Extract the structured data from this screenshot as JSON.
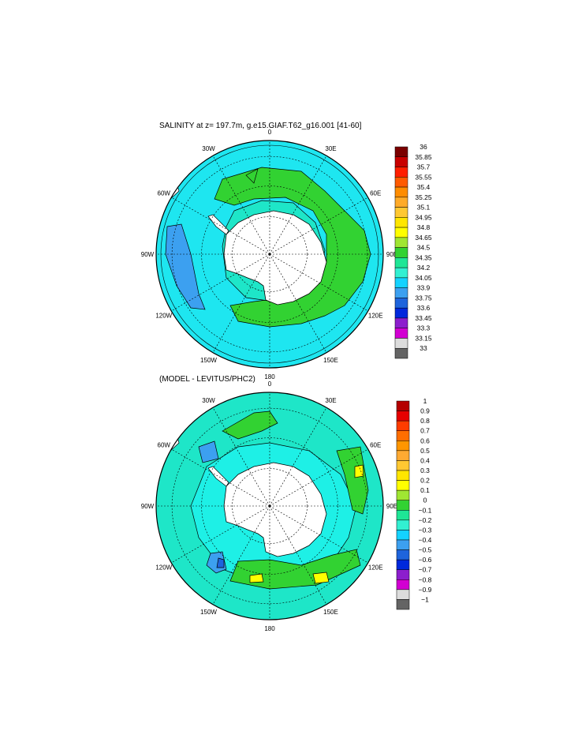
{
  "chart_data": [
    {
      "type": "heatmap",
      "title": "SALINITY at z= 197.7m, g.e15.GIAF.T62_g16.001 [41-60]",
      "projection": "south polar stereographic",
      "lon_labels": [
        "0",
        "30E",
        "60E",
        "90E",
        "120E",
        "150E",
        "180",
        "150W",
        "120W",
        "90W",
        "60W",
        "30W"
      ],
      "colorbar": {
        "labels": [
          "36",
          "35.85",
          "35.7",
          "35.55",
          "35.4",
          "35.25",
          "35.1",
          "34.95",
          "34.8",
          "34.65",
          "34.5",
          "34.35",
          "34.2",
          "34.05",
          "33.9",
          "33.75",
          "33.6",
          "33.45",
          "33.3",
          "33.15",
          "33"
        ],
        "colors": [
          "#7a0000",
          "#c80000",
          "#ff1e00",
          "#ff5a00",
          "#ff8c00",
          "#ffaa28",
          "#ffc832",
          "#ffe600",
          "#ffff00",
          "#a0e632",
          "#32d232",
          "#1ee696",
          "#32f0d2",
          "#14d2ff",
          "#3ca0f0",
          "#1e64dc",
          "#0028dc",
          "#8c1ecd",
          "#d200d2",
          "#dcdcdc",
          "#646464"
        ]
      }
    },
    {
      "type": "heatmap",
      "title": "(MODEL - LEVITUS/PHC2)",
      "projection": "south polar stereographic",
      "lon_labels": [
        "0",
        "30E",
        "60E",
        "90E",
        "120E",
        "150E",
        "180",
        "150W",
        "120W",
        "90W",
        "60W",
        "30W"
      ],
      "colorbar": {
        "labels": [
          "1",
          "0.9",
          "0.8",
          "0.7",
          "0.6",
          "0.5",
          "0.4",
          "0.3",
          "0.2",
          "0.1",
          "0",
          "−0.1",
          "−0.2",
          "−0.3",
          "−0.4",
          "−0.5",
          "−0.6",
          "−0.7",
          "−0.8",
          "−0.9",
          "−1"
        ],
        "colors": [
          "#b40000",
          "#e60000",
          "#ff3c00",
          "#ff6e00",
          "#ff9600",
          "#ffaa32",
          "#ffc832",
          "#ffe600",
          "#ffff00",
          "#a0e632",
          "#32d232",
          "#1ee696",
          "#32f0d2",
          "#14d2ff",
          "#3ca0f0",
          "#1e64dc",
          "#0028dc",
          "#8c1ecd",
          "#d200d2",
          "#dcdcdc",
          "#646464"
        ]
      }
    }
  ]
}
